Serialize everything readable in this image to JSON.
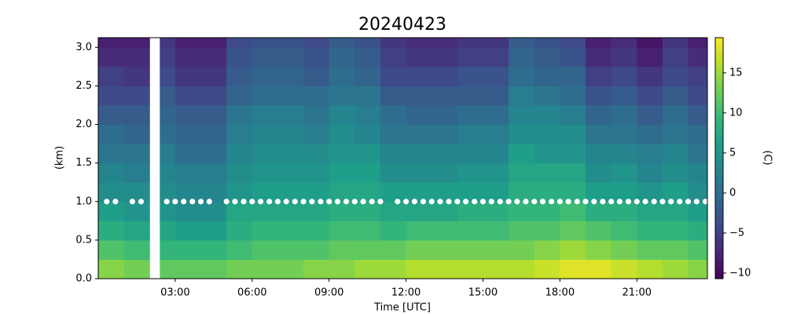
{
  "chart_data": {
    "type": "heatmap",
    "title": "20240423",
    "x_label": "Time [UTC]",
    "y_label": "(km)",
    "colorbar_label": "(C)",
    "colormap": "viridis",
    "xlim": [
      0,
      23.75
    ],
    "ylim": [
      0,
      3.125
    ],
    "clim": [
      -10.7,
      19.4
    ],
    "xticks": [
      {
        "value": 3,
        "label": "03:00"
      },
      {
        "value": 6,
        "label": "06:00"
      },
      {
        "value": 9,
        "label": "09:00"
      },
      {
        "value": 12,
        "label": "12:00"
      },
      {
        "value": 15,
        "label": "15:00"
      },
      {
        "value": 18,
        "label": "18:00"
      },
      {
        "value": 21,
        "label": "21:00"
      }
    ],
    "yticks": [
      {
        "value": 0,
        "label": "0.0"
      },
      0.5,
      {
        "value": 1,
        "label": "1.0"
      },
      1.5,
      {
        "value": 2,
        "label": "2.0"
      },
      2.5,
      {
        "value": 3,
        "label": "3.0"
      }
    ],
    "cticks": [
      {
        "value": -10,
        "label": "−10"
      },
      {
        "value": -5,
        "label": "−5"
      },
      0,
      5,
      10,
      15
    ],
    "xbins": [
      0,
      1,
      2,
      2.4,
      3,
      4,
      5,
      6,
      7,
      8,
      9,
      10,
      11,
      12,
      13,
      14,
      15,
      16,
      17,
      18,
      19,
      20,
      21,
      22,
      23,
      23.75
    ],
    "ybins": [
      0,
      0.25,
      0.5,
      0.75,
      1,
      1.25,
      1.5,
      1.75,
      2,
      2.25,
      2.5,
      2.75,
      3,
      3.125
    ],
    "z": [
      [
        14,
        13,
        null,
        12,
        12,
        12,
        13,
        13,
        13,
        14,
        14,
        15,
        15,
        16,
        16,
        16,
        16,
        16,
        17,
        18,
        18,
        17,
        16,
        15,
        14
      ],
      [
        11,
        10,
        null,
        9,
        9,
        9,
        10,
        11,
        11,
        11,
        12,
        12,
        12,
        13,
        13,
        13,
        13,
        13,
        14,
        15,
        14,
        13,
        12,
        12,
        11
      ],
      [
        8,
        7,
        null,
        7,
        6,
        6,
        8,
        9,
        9,
        9,
        10,
        10,
        9,
        10,
        10,
        10,
        10,
        11,
        11,
        12,
        11,
        10,
        9,
        9,
        8
      ],
      [
        6,
        5,
        null,
        5,
        4,
        4,
        7,
        7,
        7,
        7,
        8,
        8,
        7,
        7,
        7,
        8,
        8,
        9,
        9,
        10,
        8,
        8,
        7,
        7,
        6
      ],
      [
        4,
        4,
        null,
        4,
        3,
        3,
        5,
        6,
        6,
        6,
        7,
        7,
        6,
        6,
        6,
        6,
        6,
        8,
        8,
        8,
        6,
        6,
        5,
        6,
        4
      ],
      [
        3,
        2,
        null,
        3,
        2,
        2,
        4,
        5,
        5,
        5,
        6,
        6,
        4,
        4,
        4,
        5,
        5,
        7,
        7,
        7,
        4,
        5,
        3,
        4,
        3
      ],
      [
        1,
        1,
        null,
        2,
        0,
        0,
        3,
        4,
        4,
        4,
        5,
        5,
        3,
        3,
        3,
        3,
        3,
        6,
        5,
        5,
        3,
        3,
        2,
        3,
        1
      ],
      [
        0,
        -1,
        null,
        0,
        -1,
        -1,
        2,
        3,
        3,
        2,
        4,
        3,
        1,
        1,
        1,
        2,
        2,
        4,
        4,
        4,
        1,
        1,
        0,
        1,
        0
      ],
      [
        -2,
        -2,
        null,
        -1,
        -2,
        -2,
        1,
        2,
        2,
        1,
        3,
        2,
        0,
        -1,
        -1,
        0,
        0,
        3,
        3,
        2,
        -1,
        0,
        -2,
        0,
        -2
      ],
      [
        -4,
        -4,
        null,
        -2,
        -4,
        -4,
        -1,
        0,
        0,
        0,
        1,
        1,
        -2,
        -2,
        -2,
        -2,
        -2,
        2,
        1,
        0,
        -3,
        -2,
        -4,
        -2,
        -4
      ],
      [
        -5,
        -6,
        null,
        -4,
        -6,
        -6,
        -2,
        -1,
        -1,
        -2,
        0,
        -1,
        -4,
        -4,
        -4,
        -3,
        -3,
        0,
        -1,
        -1,
        -5,
        -4,
        -6,
        -4,
        -5
      ],
      [
        -7,
        -7,
        null,
        -5,
        -7,
        -7,
        -3,
        -2,
        -2,
        -3,
        -1,
        -2,
        -5,
        -6,
        -6,
        -5,
        -5,
        -1,
        -2,
        -3,
        -7,
        -6,
        -8,
        -5,
        -7
      ],
      [
        -8,
        -8,
        null,
        -6,
        -8,
        -8,
        -4,
        -3,
        -3,
        -4,
        -2,
        -3,
        -6,
        -7,
        -7,
        -6,
        -6,
        -2,
        -3,
        -4,
        -8,
        -7,
        -9,
        -6,
        -8
      ]
    ],
    "marker_height": 1,
    "marker_times": [
      0.33,
      0.67,
      1.33,
      1.67,
      2.67,
      3,
      3.33,
      3.67,
      4,
      4.33,
      5,
      5.33,
      5.67,
      6,
      6.33,
      6.67,
      7,
      7.33,
      7.67,
      8,
      8.33,
      8.67,
      9,
      9.33,
      9.67,
      10,
      10.33,
      10.67,
      11,
      11.67,
      12,
      12.33,
      12.67,
      13,
      13.33,
      13.67,
      14,
      14.33,
      14.67,
      15,
      15.33,
      15.67,
      16,
      16.33,
      16.67,
      17,
      17.33,
      17.67,
      18,
      18.33,
      18.67,
      19,
      19.33,
      19.67,
      20,
      20.33,
      20.67,
      21,
      21.33,
      21.67,
      22,
      22.33,
      22.67,
      23,
      23.33,
      23.67
    ]
  }
}
